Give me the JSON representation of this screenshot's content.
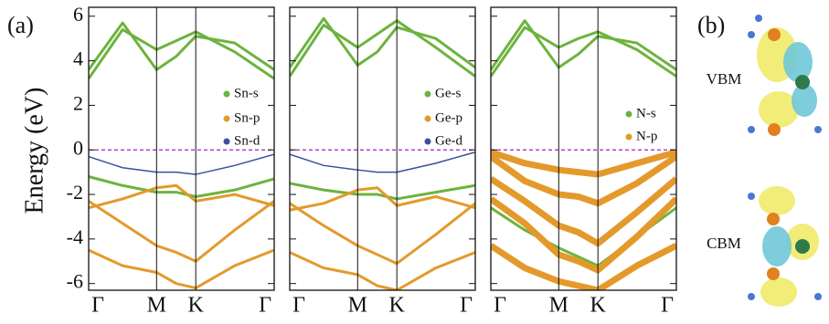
{
  "panel_labels": [
    "(a)",
    "(b)"
  ],
  "ylabel": "Energy (eV)",
  "orbital_labels": [
    "VBM",
    "CBM"
  ],
  "chart_data": [
    {
      "type": "line",
      "x": [
        0,
        0.5,
        1,
        1.29,
        1.577,
        2.15,
        2.732
      ],
      "xlim": [
        0,
        2.732
      ],
      "xticks": [
        {
          "value": 0,
          "label": "Γ"
        },
        {
          "value": 1,
          "label": "M"
        },
        {
          "value": 1.577,
          "label": "K"
        },
        {
          "value": 2.732,
          "label": "Γ"
        }
      ],
      "ylim": [
        -6.3,
        6.4
      ],
      "yticks": [
        -6,
        -4,
        -2,
        0,
        2,
        4,
        6
      ],
      "hline": 0,
      "series": [
        {
          "name": "Sn-s",
          "color": "#6db33f",
          "width": 3,
          "bands": [
            [
              3.2,
              5.4,
              4.5,
              4.9,
              5.3,
              4.4,
              3.2
            ],
            [
              3.6,
              5.7,
              3.6,
              4.2,
              5.1,
              4.8,
              3.6
            ],
            [
              -1.2,
              -1.6,
              -1.9,
              -1.9,
              -2.1,
              -1.8,
              -1.3
            ]
          ]
        },
        {
          "name": "Sn-p",
          "color": "#e39a2b",
          "width": 3,
          "bands": [
            [
              -2.3,
              -3.3,
              -4.3,
              -4.6,
              -5.0,
              -3.6,
              -2.3
            ],
            [
              -2.6,
              -2.2,
              -1.7,
              -1.6,
              -2.3,
              -2.0,
              -2.5
            ],
            [
              -4.5,
              -5.2,
              -5.5,
              -6.0,
              -6.2,
              -5.2,
              -4.5
            ]
          ]
        },
        {
          "name": "Sn-d",
          "color": "#3b4fa0",
          "width": 1.5,
          "bands": [
            [
              -0.3,
              -0.8,
              -1.0,
              -1.0,
              -1.1,
              -0.7,
              -0.2
            ]
          ]
        }
      ]
    },
    {
      "type": "line",
      "x": [
        0,
        0.5,
        1,
        1.29,
        1.577,
        2.15,
        2.732
      ],
      "xlim": [
        0,
        2.732
      ],
      "xticks": [
        {
          "value": 0,
          "label": "Γ"
        },
        {
          "value": 1,
          "label": "M"
        },
        {
          "value": 1.577,
          "label": "K"
        },
        {
          "value": 2.732,
          "label": "Γ"
        }
      ],
      "ylim": [
        -6.3,
        6.4
      ],
      "yticks": [
        -6,
        -4,
        -2,
        0,
        2,
        4,
        6
      ],
      "hline": 0,
      "series": [
        {
          "name": "Ge-s",
          "color": "#6db33f",
          "width": 3,
          "bands": [
            [
              3.3,
              5.6,
              4.6,
              5.2,
              5.8,
              4.6,
              3.3
            ],
            [
              3.7,
              5.9,
              3.8,
              4.4,
              5.5,
              5.0,
              3.7
            ],
            [
              -1.5,
              -1.8,
              -2.0,
              -2.0,
              -2.2,
              -1.9,
              -1.6
            ]
          ]
        },
        {
          "name": "Ge-p",
          "color": "#e39a2b",
          "width": 3,
          "bands": [
            [
              -2.4,
              -3.4,
              -4.3,
              -4.7,
              -5.1,
              -3.8,
              -2.4
            ],
            [
              -2.7,
              -2.4,
              -1.8,
              -1.7,
              -2.5,
              -2.1,
              -2.6
            ],
            [
              -4.6,
              -5.3,
              -5.6,
              -6.1,
              -6.3,
              -5.3,
              -4.6
            ]
          ]
        },
        {
          "name": "Ge-d",
          "color": "#3b4fa0",
          "width": 1.5,
          "bands": [
            [
              -0.2,
              -0.7,
              -0.9,
              -1.0,
              -1.0,
              -0.6,
              -0.1
            ]
          ]
        }
      ]
    },
    {
      "type": "line",
      "x": [
        0,
        0.5,
        1,
        1.29,
        1.577,
        2.15,
        2.732
      ],
      "xlim": [
        0,
        2.732
      ],
      "xticks": [
        {
          "value": 0,
          "label": "Γ"
        },
        {
          "value": 1,
          "label": "M"
        },
        {
          "value": 1.577,
          "label": "K"
        },
        {
          "value": 2.732,
          "label": "Γ"
        }
      ],
      "ylim": [
        -6.3,
        6.4
      ],
      "yticks": [
        -6,
        -4,
        -2,
        0,
        2,
        4,
        6
      ],
      "hline": 0,
      "series": [
        {
          "name": "N-s",
          "color": "#6db33f",
          "width": 3,
          "bands": [
            [
              3.3,
              5.5,
              4.6,
              5.0,
              5.3,
              4.5,
              3.3
            ],
            [
              3.6,
              5.8,
              3.7,
              4.3,
              5.1,
              4.8,
              3.6
            ],
            [
              -2.6,
              -3.6,
              -4.4,
              -4.8,
              -5.2,
              -3.9,
              -2.6
            ]
          ]
        },
        {
          "name": "N-p",
          "color": "#e39a2b",
          "width": 7,
          "bands": [
            [
              -0.1,
              -0.6,
              -0.9,
              -1.0,
              -1.1,
              -0.6,
              -0.1
            ],
            [
              -0.3,
              -1.4,
              -2.0,
              -2.1,
              -2.4,
              -1.5,
              -0.3
            ],
            [
              -1.3,
              -2.3,
              -3.4,
              -3.7,
              -4.2,
              -2.8,
              -1.3
            ],
            [
              -2.2,
              -3.3,
              -4.7,
              -5.0,
              -5.4,
              -3.9,
              -2.2
            ],
            [
              -4.3,
              -5.3,
              -5.9,
              -6.1,
              -6.3,
              -5.2,
              -4.3
            ]
          ]
        }
      ]
    }
  ]
}
